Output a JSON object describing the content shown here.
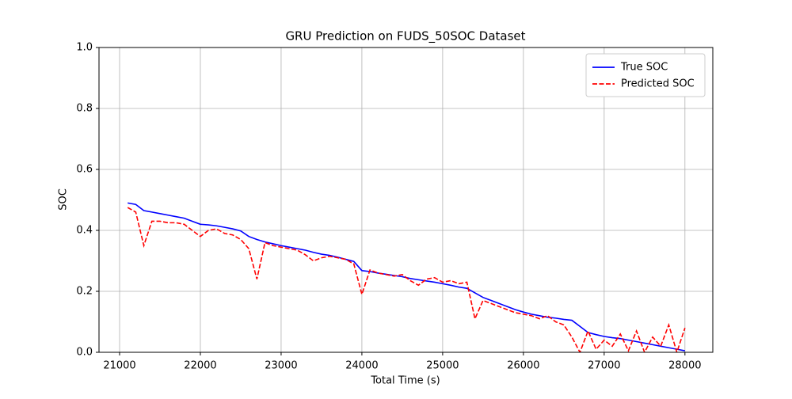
{
  "chart_data": {
    "type": "line",
    "title": "GRU Prediction on FUDS_50SOC Dataset",
    "xlabel": "Total Time (s)",
    "ylabel": "SOC",
    "x": [
      21100,
      21200,
      21300,
      21400,
      21500,
      21600,
      21700,
      21800,
      21900,
      22000,
      22100,
      22200,
      22300,
      22400,
      22500,
      22600,
      22700,
      22800,
      22900,
      23000,
      23100,
      23200,
      23300,
      23400,
      23500,
      23600,
      23700,
      23800,
      23900,
      24000,
      24100,
      24200,
      24300,
      24400,
      24500,
      24600,
      24700,
      24800,
      24900,
      25000,
      25100,
      25200,
      25300,
      25400,
      25500,
      25600,
      25700,
      25800,
      25900,
      26000,
      26100,
      26200,
      26300,
      26400,
      26500,
      26600,
      26700,
      26800,
      26900,
      27000,
      27100,
      27200,
      27300,
      27400,
      27500,
      27600,
      27700,
      27800,
      27900,
      28000
    ],
    "series": [
      {
        "name": "True SOC",
        "color": "#0000ff",
        "style": "solid",
        "values": [
          0.49,
          0.485,
          0.465,
          0.46,
          0.455,
          0.45,
          0.445,
          0.44,
          0.43,
          0.42,
          0.418,
          0.415,
          0.41,
          0.405,
          0.398,
          0.38,
          0.37,
          0.362,
          0.356,
          0.35,
          0.345,
          0.34,
          0.335,
          0.328,
          0.322,
          0.318,
          0.312,
          0.305,
          0.298,
          0.268,
          0.265,
          0.26,
          0.256,
          0.252,
          0.248,
          0.242,
          0.238,
          0.234,
          0.23,
          0.225,
          0.22,
          0.214,
          0.21,
          0.195,
          0.18,
          0.17,
          0.16,
          0.15,
          0.14,
          0.132,
          0.125,
          0.12,
          0.115,
          0.112,
          0.108,
          0.105,
          0.085,
          0.065,
          0.058,
          0.052,
          0.048,
          0.045,
          0.04,
          0.035,
          0.03,
          0.025,
          0.02,
          0.015,
          0.01,
          0.005
        ]
      },
      {
        "name": "Predicted SOC",
        "color": "#ff0000",
        "style": "dashed",
        "values": [
          0.475,
          0.46,
          0.35,
          0.43,
          0.43,
          0.425,
          0.425,
          0.42,
          0.4,
          0.38,
          0.4,
          0.405,
          0.39,
          0.385,
          0.37,
          0.34,
          0.24,
          0.36,
          0.35,
          0.345,
          0.34,
          0.335,
          0.32,
          0.3,
          0.31,
          0.315,
          0.31,
          0.305,
          0.29,
          0.19,
          0.27,
          0.26,
          0.255,
          0.25,
          0.255,
          0.235,
          0.22,
          0.24,
          0.245,
          0.23,
          0.235,
          0.225,
          0.23,
          0.11,
          0.17,
          0.16,
          0.15,
          0.14,
          0.13,
          0.125,
          0.12,
          0.11,
          0.12,
          0.1,
          0.09,
          0.05,
          0.0,
          0.07,
          0.01,
          0.04,
          0.02,
          0.06,
          0.005,
          0.07,
          0.0,
          0.05,
          0.02,
          0.09,
          0.0,
          0.08
        ]
      }
    ],
    "xlim": [
      20745,
      28345
    ],
    "ylim": [
      0,
      1
    ],
    "xticks": [
      21000,
      22000,
      23000,
      24000,
      25000,
      26000,
      27000,
      28000
    ],
    "yticks": [
      {
        "value": 0,
        "label": "0.0"
      },
      0.2,
      0.4,
      0.6,
      0.8,
      {
        "value": 1,
        "label": "1.0"
      }
    ],
    "grid": true,
    "legend": "upper right"
  }
}
